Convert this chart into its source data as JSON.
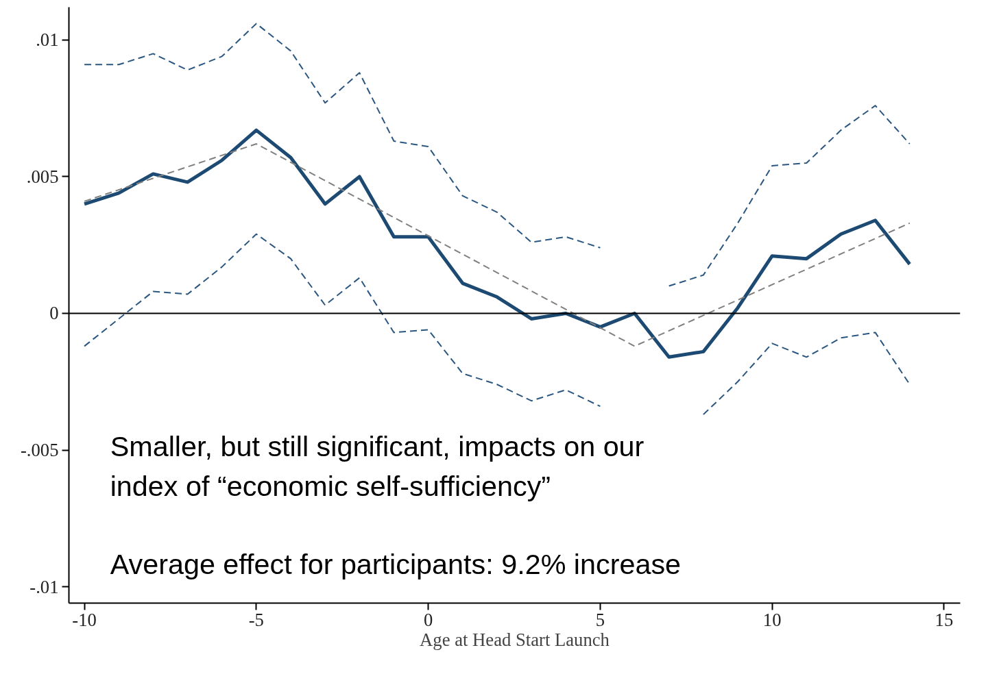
{
  "chart_data": {
    "type": "line",
    "xlabel": "Age at Head Start Launch",
    "x": [
      -10,
      -9,
      -8,
      -7,
      -6,
      -5,
      -4,
      -3,
      -2,
      -1,
      0,
      1,
      2,
      3,
      4,
      5,
      6,
      7,
      8,
      9,
      10,
      11,
      12,
      13,
      14
    ],
    "series": [
      {
        "color": "#1c4a72",
        "line_style": "solid",
        "values": [
          0.004,
          0.0044,
          0.0051,
          0.0048,
          0.0056,
          0.0067,
          0.0057,
          0.004,
          0.005,
          0.0028,
          0.0028,
          0.0011,
          0.0006,
          -0.0002,
          0.0,
          -0.0005,
          0.0,
          -0.0016,
          -0.0014,
          0.0002,
          0.0021,
          0.002,
          0.0029,
          0.0034,
          0.0018
        ]
      },
      {
        "color": "#2a5680",
        "line_style": "dashed",
        "values": [
          0.0091,
          0.0091,
          0.0095,
          0.0089,
          0.0094,
          0.0106,
          0.0096,
          0.0077,
          0.0088,
          0.0063,
          0.0061,
          0.0043,
          0.0037,
          0.0026,
          0.0028,
          0.0024,
          null,
          0.001,
          0.0014,
          0.0033,
          0.0054,
          0.0055,
          0.0067,
          0.0076,
          0.0062
        ]
      },
      {
        "color": "#2a5680",
        "line_style": "dashed",
        "values": [
          -0.0012,
          -0.0002,
          0.0008,
          0.0007,
          0.0017,
          0.0029,
          0.002,
          0.0003,
          0.0013,
          -0.0007,
          -0.0006,
          -0.0022,
          -0.0026,
          -0.0032,
          -0.0028,
          -0.0034,
          null,
          null,
          -0.0037,
          -0.0025,
          -0.0011,
          -0.0016,
          -0.0009,
          -0.0007,
          -0.0026
        ]
      },
      {
        "color": "#808080",
        "line_style": "dashed",
        "x": [
          -10,
          -5,
          6,
          14
        ],
        "values": [
          0.0041,
          0.0062,
          -0.0012,
          0.0033
        ]
      }
    ],
    "xlim": [
      -10.45,
      15.47
    ],
    "ylim": [
      -0.0106,
      0.0112
    ],
    "xticks": [
      -10,
      -5,
      0,
      5,
      10,
      15
    ],
    "yticks": [
      {
        "value": 0.01,
        "label": ".01"
      },
      {
        "value": 0.005,
        "label": ".005"
      },
      0,
      {
        "value": -0.005,
        "label": "-.005"
      },
      {
        "value": -0.01,
        "label": "-.01"
      }
    ],
    "ref_lines": [
      {
        "axis": "y",
        "value": 0,
        "color": "#000000",
        "line_style": "solid"
      }
    ],
    "grid": false,
    "annotations": [
      "Smaller, but still significant, impacts on our index of “economic self-sufficiency”",
      "Average effect for participants: 9.2% increase"
    ]
  }
}
